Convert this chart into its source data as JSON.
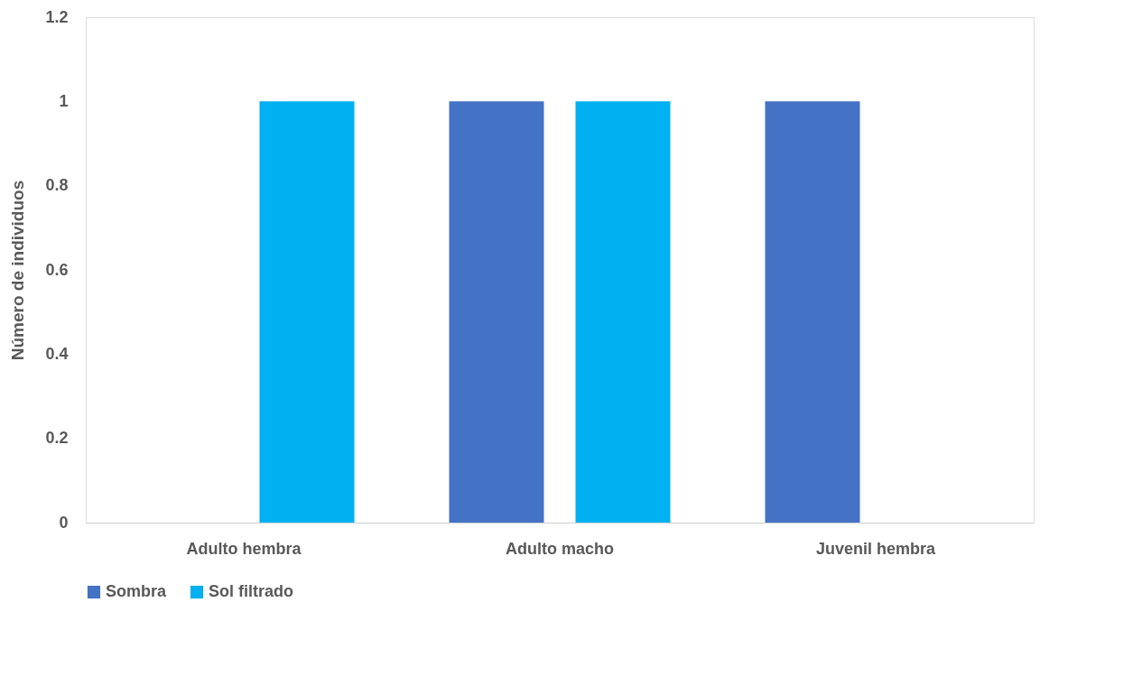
{
  "chart_data": {
    "type": "bar",
    "ylabel": "Número de individuos",
    "categories": [
      "Adulto hembra",
      "Adulto macho",
      "Juvenil hembra"
    ],
    "series": [
      {
        "name": "Sombra",
        "color": "#4472c4",
        "values": [
          0,
          1,
          1
        ]
      },
      {
        "name": "Sol filtrado",
        "color": "#00b0f0",
        "values": [
          1,
          1,
          0
        ]
      }
    ],
    "ylim": [
      0,
      1.2
    ],
    "yticks": [
      0,
      0.2,
      0.4,
      0.6,
      0.8,
      1,
      1.2
    ],
    "grid": false,
    "legend": "bottom"
  }
}
